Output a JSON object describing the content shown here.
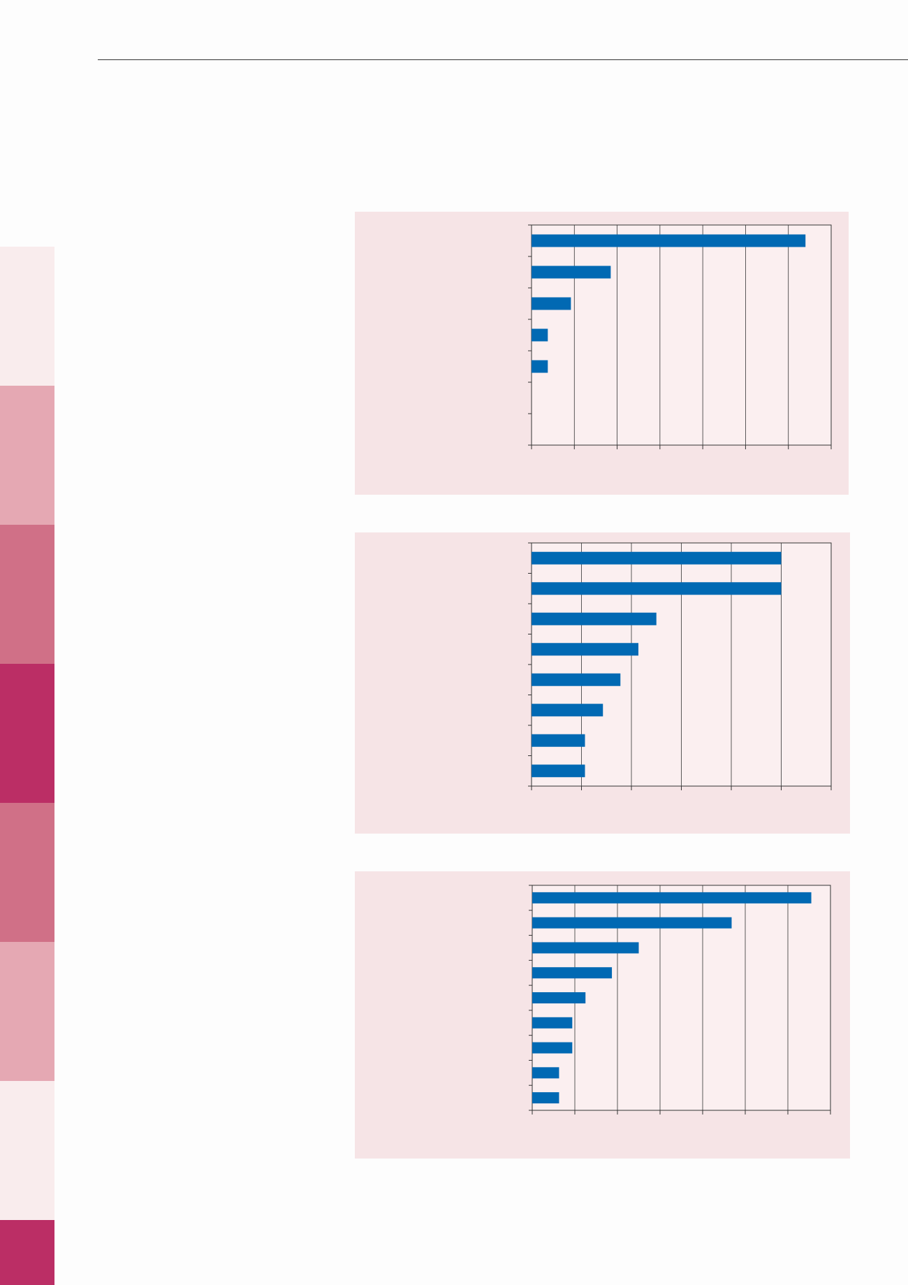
{
  "side_strip": {
    "colors": [
      "#f9eced",
      "#e5a8b3",
      "#d07087",
      "#bb2e65",
      "#d07087",
      "#e5a8b3",
      "#f9eced",
      "#bb2e65"
    ]
  },
  "colors": {
    "panel_background": "#f6e4e6",
    "plot_background": "#fbeff0",
    "bar": "#0169b3",
    "axis": "#333333",
    "rule": "#333333"
  },
  "chart_data": [
    {
      "type": "bar",
      "orientation": "horizontal",
      "title": "",
      "xlabel": "",
      "ylabel": "",
      "xlim": [
        0,
        7
      ],
      "x_gridlines": 7,
      "categories": [
        "",
        "",
        "",
        "",
        "",
        "",
        ""
      ],
      "values": [
        6.4,
        1.85,
        0.92,
        0.38,
        0.38,
        0,
        0
      ],
      "grid": true,
      "legend": "none"
    },
    {
      "type": "bar",
      "orientation": "horizontal",
      "title": "",
      "xlabel": "",
      "ylabel": "",
      "xlim": [
        0,
        6
      ],
      "x_gridlines": 6,
      "categories": [
        "",
        "",
        "",
        "",
        "",
        "",
        "",
        ""
      ],
      "values": [
        5.0,
        5.0,
        2.5,
        2.14,
        1.78,
        1.43,
        1.07,
        1.07
      ],
      "grid": true,
      "legend": "none"
    },
    {
      "type": "bar",
      "orientation": "horizontal",
      "title": "",
      "xlabel": "",
      "ylabel": "",
      "xlim": [
        0,
        7
      ],
      "x_gridlines": 7,
      "categories": [
        "",
        "",
        "",
        "",
        "",
        "",
        "",
        "",
        ""
      ],
      "values": [
        6.55,
        4.68,
        2.5,
        1.87,
        1.25,
        0.94,
        0.94,
        0.63,
        0.63
      ],
      "grid": true,
      "legend": "none"
    }
  ]
}
